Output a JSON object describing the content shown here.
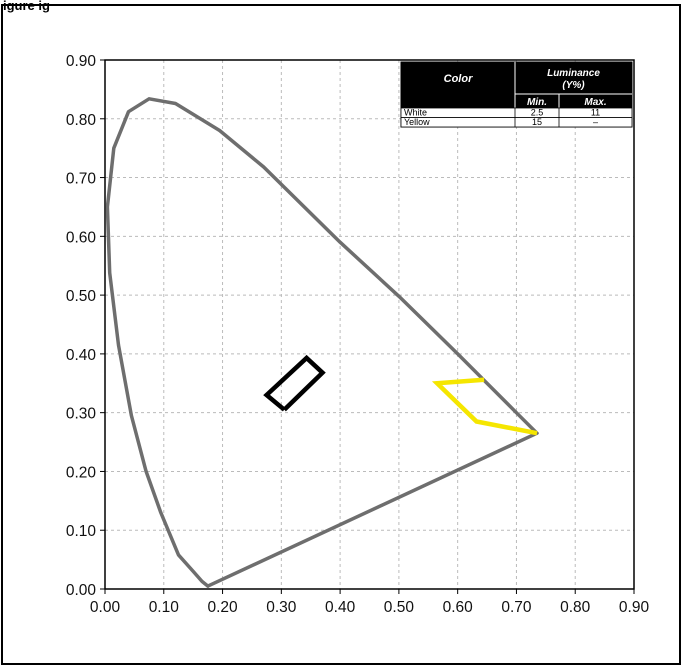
{
  "header": {
    "title": "igure  ig"
  },
  "chart_data": {
    "type": "scatter",
    "xlim": [
      0,
      0.9
    ],
    "ylim": [
      0,
      0.9
    ],
    "grid": true,
    "x_ticks": [
      "0.00",
      "0.10",
      "0.20",
      "0.30",
      "0.40",
      "0.50",
      "0.60",
      "0.70",
      "0.80",
      "0.90"
    ],
    "y_ticks": [
      "0.00",
      "0.10",
      "0.20",
      "0.30",
      "0.40",
      "0.50",
      "0.60",
      "0.70",
      "0.80",
      "0.90"
    ],
    "colors": {
      "locus": "#6e6e6e",
      "white": "#000000",
      "yellow": "#f5e600",
      "grid": "#bbbbbb"
    },
    "spectral_locus": [
      [
        0.175,
        0.005
      ],
      [
        0.165,
        0.013
      ],
      [
        0.15,
        0.03
      ],
      [
        0.125,
        0.058
      ],
      [
        0.095,
        0.13
      ],
      [
        0.07,
        0.2
      ],
      [
        0.045,
        0.295
      ],
      [
        0.023,
        0.415
      ],
      [
        0.008,
        0.538
      ],
      [
        0.004,
        0.65
      ],
      [
        0.015,
        0.75
      ],
      [
        0.04,
        0.812
      ],
      [
        0.075,
        0.834
      ],
      [
        0.12,
        0.826
      ],
      [
        0.195,
        0.78
      ],
      [
        0.27,
        0.718
      ],
      [
        0.4,
        0.59
      ],
      [
        0.5,
        0.498
      ],
      [
        0.6,
        0.4
      ],
      [
        0.7,
        0.3
      ],
      [
        0.735,
        0.265
      ],
      [
        0.175,
        0.005
      ]
    ],
    "regions": [
      {
        "name": "White",
        "color": "#000000",
        "points": [
          [
            0.305,
            0.305
          ],
          [
            0.275,
            0.33
          ],
          [
            0.343,
            0.393
          ],
          [
            0.37,
            0.368
          ],
          [
            0.305,
            0.305
          ]
        ]
      },
      {
        "name": "Yellow",
        "color": "#f5e600",
        "points": [
          [
            0.645,
            0.356
          ],
          [
            0.565,
            0.35
          ],
          [
            0.632,
            0.285
          ],
          [
            0.735,
            0.265
          ]
        ]
      }
    ],
    "table": {
      "headers": {
        "color": "Color",
        "luminance": "Luminance",
        "luminance_sub": "(Y%)",
        "min": "Min.",
        "max": "Max."
      },
      "rows": [
        {
          "color": "White",
          "min": "2.5",
          "max": "11"
        },
        {
          "color": "Yellow",
          "min": "15",
          "max": "–"
        }
      ]
    }
  }
}
